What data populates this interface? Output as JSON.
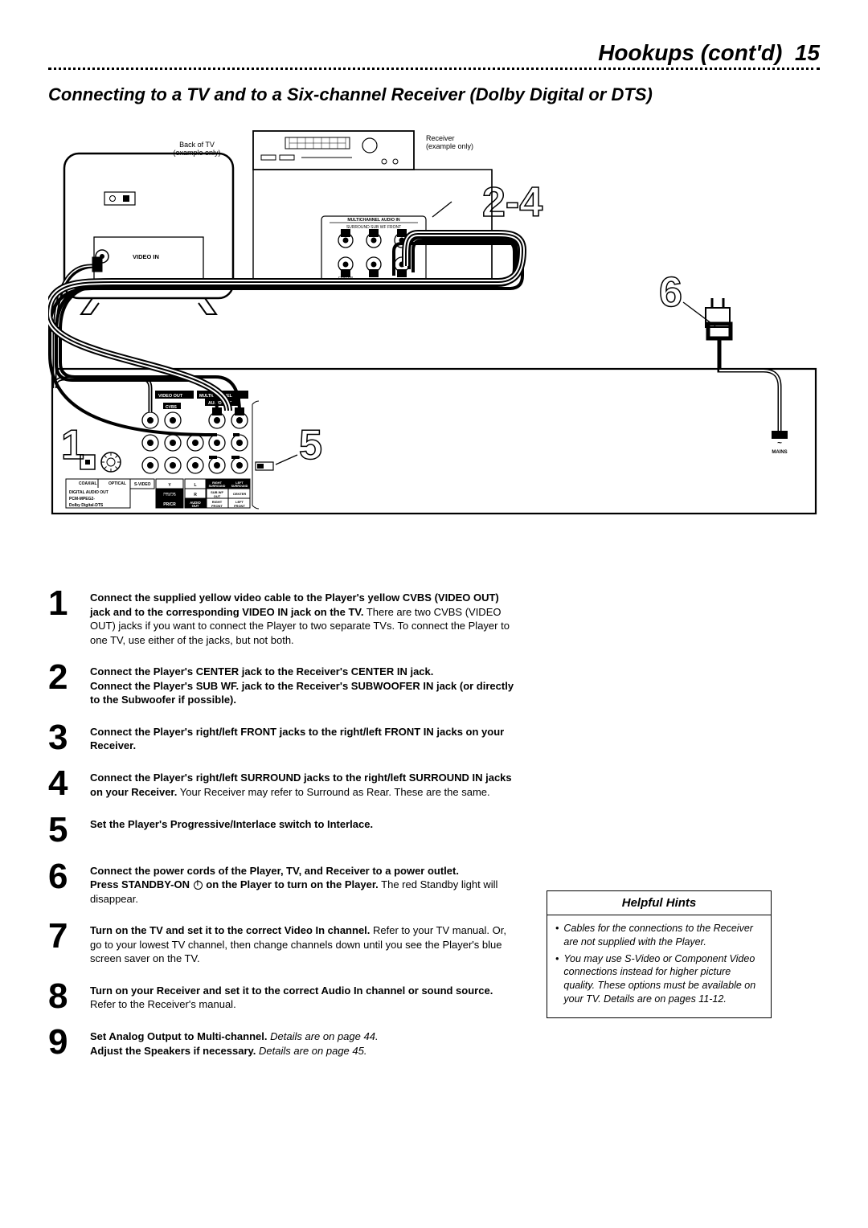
{
  "header": {
    "title": "Hookups (cont'd)",
    "page_number": "15"
  },
  "section_title": "Connecting to a TV and to a Six-channel Receiver (Dolby Digital or DTS)",
  "diagram": {
    "tv_label": "Back of TV\n(example only)",
    "receiver_label": "Receiver\n(example only)",
    "tv_video_in": "VIDEO IN",
    "receiver_multich": "MULTICHANNEL AUDIO IN",
    "receiver_row1": "SURROUND  SUB WF  FRONT",
    "callouts": {
      "c1": "1",
      "c24": "2-4",
      "c5": "5",
      "c6": "6"
    },
    "player_labels": {
      "video_out": "VIDEO OUT",
      "multich_out": "MULTICHANNEL",
      "audio_out": "AUDIO OUT",
      "cvbs": "CVBS",
      "coaxial": "COAXIAL",
      "optical": "OPTICAL",
      "svideo": "S-VIDEO",
      "digital_audio_out": "DIGITAL AUDIO OUT",
      "pcm": "PCM-MPEG2-",
      "dolby": "Dolby Digital-DTS",
      "video_out2": "VIDEO OUT",
      "y": "Y",
      "pbcb": "PB/CB",
      "prcr": "PR/CR",
      "l": "L",
      "r": "R",
      "audio_out2": "AUDIO",
      "out": "OUT",
      "right_surr": "RIGHT",
      "surr": "SURROUND",
      "left_surr": "LEFT",
      "surr2": "SURROUND",
      "subwf": "SUB WF",
      "out2": "OUT",
      "center": "CENTER",
      "right_front": "RIGHT",
      "front": "FRONT",
      "left_front": "LEFT",
      "front2": "FRONT",
      "mains": "MAINS"
    }
  },
  "steps": [
    {
      "n": "1",
      "html": "<span class='bold'>Connect the supplied yellow video cable to the Player's yellow CVBS (VIDEO OUT) jack and to the corresponding VIDEO IN jack on the TV.</span> There are two CVBS (VIDEO OUT) jacks if you want to connect the Player to two separate TVs. To connect the Player to one TV, use either of the jacks, but not both."
    },
    {
      "n": "2",
      "html": "<span class='bold'>Connect the Player's CENTER jack to the Receiver's CENTER IN jack.<br>Connect the Player's SUB WF. jack to the Receiver's SUBWOOFER IN jack (or directly to the Subwoofer if possible).</span>"
    },
    {
      "n": "3",
      "html": "<span class='bold'>Connect the Player's right/left FRONT jacks to the right/left FRONT IN jacks on your Receiver.</span>"
    },
    {
      "n": "4",
      "html": "<span class='bold'>Connect the Player's right/left SURROUND jacks to the right/left SURROUND IN jacks on your Receiver.</span> Your Receiver may refer to Surround as Rear. These are the same."
    },
    {
      "n": "5",
      "html": "<span class='bold'>Set the Player's Progressive/Interlace switch to Interlace.</span>"
    },
    {
      "n": "6",
      "html": "<span class='bold'>Connect the power cords of the Player, TV, and Receiver to a power outlet.<br>Press STANDBY-ON <span class='power-icon' data-name='power-icon'></span> on the Player to turn on the Player.</span> The red Standby light will disappear."
    },
    {
      "n": "7",
      "html": "<span class='bold'>Turn on the TV and set it to the correct Video In channel.</span> Refer to your TV manual. Or, go to your lowest TV channel, then change channels down until you see the Player's blue screen saver on the TV."
    },
    {
      "n": "8",
      "html": "<span class='bold'>Turn on your Receiver and set it to the correct Audio In channel or sound source.</span> Refer to the Receiver's manual."
    },
    {
      "n": "9",
      "html": "<span class='bold'>Set Analog Output to Multi-channel.</span> <span class='italic'>Details are on page 44.</span><br><span class='bold'>Adjust the Speakers if necessary.</span> <span class='italic'>Details are on page 45.</span>"
    }
  ],
  "hints": {
    "title": "Helpful Hints",
    "items": [
      "Cables for the connections to the Receiver are not supplied with the Player.",
      "You may use S-Video or Component Video connections instead for higher picture quality. These options must be available on your TV. Details are on pages 11-12."
    ]
  }
}
